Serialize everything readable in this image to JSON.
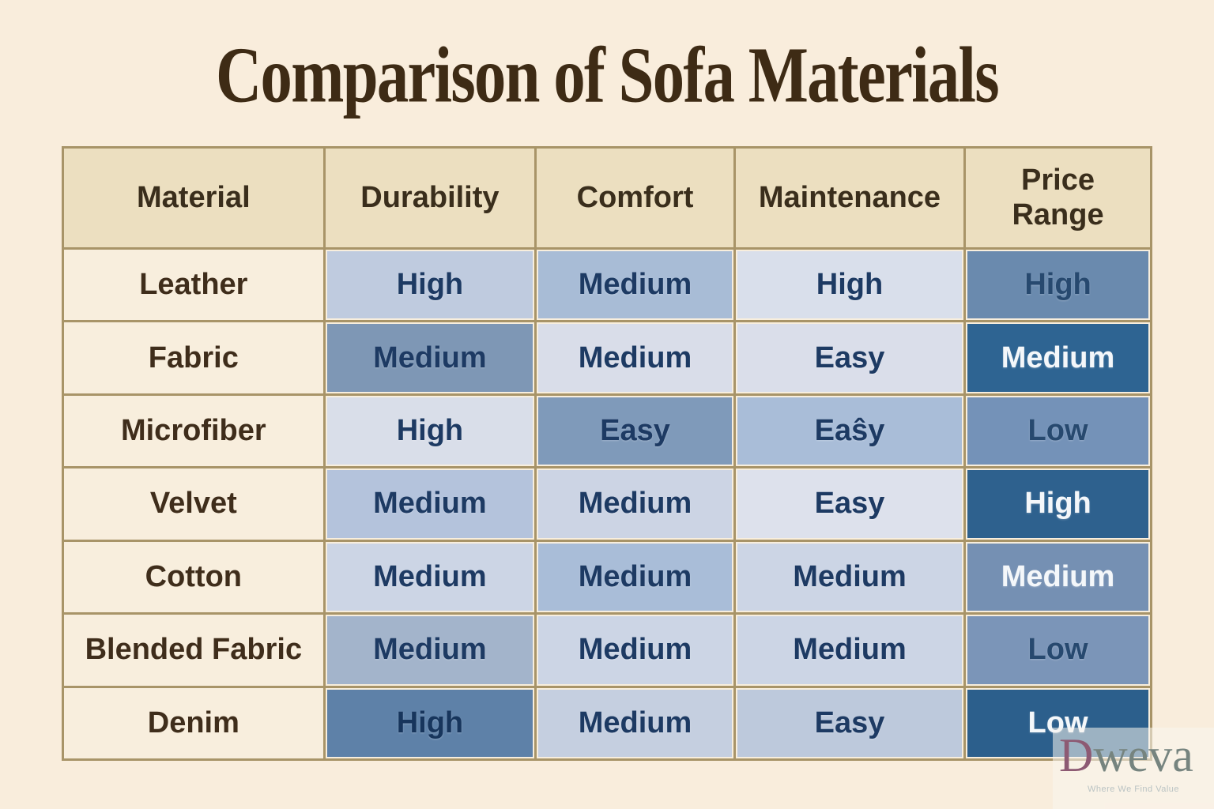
{
  "page": {
    "title": "Comparison of Sofa Materials",
    "background": "#f9eddc"
  },
  "table": {
    "border_color": "#a89468",
    "header": {
      "bg": "#ecdfc0",
      "text_color": "#3a2e1c",
      "columns": [
        "Material",
        "Durability",
        "Comfort",
        "Maintenance",
        "Price Range"
      ]
    },
    "material_cell_style": {
      "bg": "#f8eedd",
      "text_color": "#3f2d1b"
    },
    "value_columns": [
      "durability",
      "comfort",
      "maintenance",
      "price-range"
    ],
    "rows": [
      {
        "material": "Leather",
        "cells": [
          {
            "text": "High",
            "bg": "#bfcbdf",
            "color": "#1d3a63"
          },
          {
            "text": "Medium",
            "bg": "#a8bcd6",
            "color": "#1d3a63"
          },
          {
            "text": "High",
            "bg": "#d9dfeb",
            "color": "#1d3a63"
          },
          {
            "text": "High",
            "bg": "#6a8aae",
            "color": "#27496f"
          }
        ]
      },
      {
        "material": "Fabric",
        "cells": [
          {
            "text": "Medium",
            "bg": "#7e97b5",
            "color": "#1d3a63"
          },
          {
            "text": "Medium",
            "bg": "#d9dde9",
            "color": "#1d3a63"
          },
          {
            "text": "Easy",
            "bg": "#dadeea",
            "color": "#1d3a63"
          },
          {
            "text": "Medium",
            "bg": "#2e6492",
            "color": "#f4f7fa"
          }
        ]
      },
      {
        "material": "Microfiber",
        "cells": [
          {
            "text": "High",
            "bg": "#d9dee9",
            "color": "#1d3a63"
          },
          {
            "text": "Easy",
            "bg": "#7f9aba",
            "color": "#1d3a63"
          },
          {
            "text": "Eaŝy",
            "bg": "#a9bdd8",
            "color": "#1d3a63"
          },
          {
            "text": "Low",
            "bg": "#7492b8",
            "color": "#27496f"
          }
        ]
      },
      {
        "material": "Velvet",
        "cells": [
          {
            "text": "Medium",
            "bg": "#b4c3dc",
            "color": "#1d3a63"
          },
          {
            "text": "Medium",
            "bg": "#ccd4e4",
            "color": "#1d3a63"
          },
          {
            "text": "Easy",
            "bg": "#dde1ec",
            "color": "#1d3a63"
          },
          {
            "text": "High",
            "bg": "#2e618e",
            "color": "#f4f7fa"
          }
        ]
      },
      {
        "material": "Cotton",
        "cells": [
          {
            "text": "Medium",
            "bg": "#ccd5e5",
            "color": "#1d3a63"
          },
          {
            "text": "Medium",
            "bg": "#a9bdd8",
            "color": "#1d3a63"
          },
          {
            "text": "Medium",
            "bg": "#ccd5e5",
            "color": "#1d3a63"
          },
          {
            "text": "Medium",
            "bg": "#7590b3",
            "color": "#f4f7fa"
          }
        ]
      },
      {
        "material": "Blended Fabric",
        "cells": [
          {
            "text": "Medium",
            "bg": "#a3b4cb",
            "color": "#1d3a63"
          },
          {
            "text": "Medium",
            "bg": "#ccd5e5",
            "color": "#1d3a63"
          },
          {
            "text": "Medium",
            "bg": "#ccd5e5",
            "color": "#1d3a63"
          },
          {
            "text": "Low",
            "bg": "#7b95b8",
            "color": "#27496f"
          }
        ]
      },
      {
        "material": "Denim",
        "cells": [
          {
            "text": "High",
            "bg": "#5e81a8",
            "color": "#17355c"
          },
          {
            "text": "Medium",
            "bg": "#c5cfe0",
            "color": "#1d3a63"
          },
          {
            "text": "Easy",
            "bg": "#bdc9dc",
            "color": "#1d3a63"
          },
          {
            "text": "Low",
            "bg": "#2c5f8c",
            "color": "#f4f7fa"
          }
        ]
      }
    ]
  },
  "watermark": {
    "brand_first_letter": "D",
    "brand_rest": "weva",
    "tagline": "Where We Find Value",
    "first_letter_color": "#8d5a73",
    "rest_color": "#76847f",
    "tagline_color": "#bac3c3"
  },
  "chart_data": {
    "type": "table",
    "title": "Comparison of Sofa Materials",
    "columns": [
      "Material",
      "Durability",
      "Comfort",
      "Maintenance",
      "Price Range"
    ],
    "rows": [
      [
        "Leather",
        "High",
        "Medium",
        "High",
        "High"
      ],
      [
        "Fabric",
        "Medium",
        "Medium",
        "Easy",
        "Medium"
      ],
      [
        "Microfiber",
        "High",
        "Easy",
        "Eaŝy",
        "Low"
      ],
      [
        "Velvet",
        "Medium",
        "Medium",
        "Easy",
        "High"
      ],
      [
        "Cotton",
        "Medium",
        "Medium",
        "Medium",
        "Medium"
      ],
      [
        "Blended Fabric",
        "Medium",
        "Medium",
        "Medium",
        "Low"
      ],
      [
        "Denim",
        "High",
        "Medium",
        "Easy",
        "Low"
      ]
    ]
  }
}
